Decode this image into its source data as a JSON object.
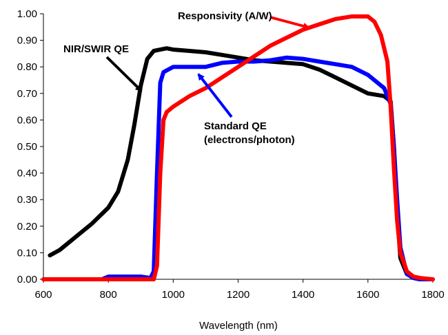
{
  "chart_data": {
    "type": "line",
    "xlabel": "Wavelength (nm)",
    "ylabel": "",
    "xlim": [
      600,
      1800
    ],
    "ylim": [
      0,
      1.0
    ],
    "x_ticks": [
      "600",
      "800",
      "1000",
      "1200",
      "1400",
      "1600",
      "1800"
    ],
    "y_ticks": [
      "0.00",
      "0.10",
      "0.20",
      "0.30",
      "0.40",
      "0.50",
      "0.60",
      "0.70",
      "0.80",
      "0.90",
      "1.00"
    ],
    "grid": false,
    "legend": "none",
    "series": [
      {
        "name": "NIR/SWIR QE",
        "color": "#000000",
        "x": [
          620,
          650,
          700,
          750,
          800,
          830,
          860,
          880,
          900,
          920,
          940,
          960,
          980,
          1000,
          1050,
          1100,
          1150,
          1200,
          1250,
          1300,
          1350,
          1400,
          1450,
          1500,
          1550,
          1600,
          1650,
          1670,
          1680,
          1690,
          1700,
          1720,
          1740,
          1760
        ],
        "y": [
          0.09,
          0.11,
          0.16,
          0.21,
          0.27,
          0.33,
          0.45,
          0.58,
          0.73,
          0.83,
          0.86,
          0.865,
          0.87,
          0.865,
          0.86,
          0.855,
          0.845,
          0.835,
          0.825,
          0.82,
          0.815,
          0.81,
          0.79,
          0.76,
          0.73,
          0.7,
          0.69,
          0.67,
          0.5,
          0.25,
          0.08,
          0.02,
          0.005,
          0.0
        ]
      },
      {
        "name": "Standard QE (electrons/photon)",
        "color": "#0000ff",
        "x": [
          600,
          780,
          800,
          850,
          900,
          930,
          940,
          950,
          960,
          970,
          1000,
          1050,
          1080,
          1100,
          1150,
          1200,
          1250,
          1300,
          1350,
          1400,
          1450,
          1500,
          1550,
          1600,
          1650,
          1670,
          1680,
          1690,
          1700,
          1720,
          1740,
          1760,
          1800
        ],
        "y": [
          0.0,
          0.0,
          0.01,
          0.01,
          0.01,
          0.005,
          0.03,
          0.4,
          0.74,
          0.78,
          0.8,
          0.8,
          0.8,
          0.8,
          0.815,
          0.82,
          0.82,
          0.825,
          0.835,
          0.83,
          0.82,
          0.81,
          0.8,
          0.77,
          0.72,
          0.66,
          0.5,
          0.3,
          0.12,
          0.02,
          0.005,
          0.0,
          0.0
        ]
      },
      {
        "name": "Responsivity (A/W)",
        "color": "#ff0000",
        "x": [
          600,
          900,
          940,
          950,
          960,
          970,
          980,
          1000,
          1050,
          1100,
          1150,
          1200,
          1250,
          1300,
          1350,
          1400,
          1450,
          1500,
          1550,
          1600,
          1620,
          1640,
          1660,
          1670,
          1680,
          1690,
          1700,
          1720,
          1740,
          1760,
          1800
        ],
        "y": [
          0.0,
          0.0,
          0.0,
          0.05,
          0.4,
          0.6,
          0.63,
          0.65,
          0.69,
          0.72,
          0.76,
          0.8,
          0.84,
          0.88,
          0.91,
          0.94,
          0.96,
          0.98,
          0.99,
          0.99,
          0.97,
          0.92,
          0.82,
          0.65,
          0.42,
          0.22,
          0.1,
          0.03,
          0.01,
          0.005,
          0.0
        ]
      }
    ],
    "annotations": [
      {
        "lines": [
          "Responsivity (A/W)"
        ],
        "series": "Responsivity (A/W)"
      },
      {
        "lines": [
          "NIR/SWIR QE"
        ],
        "series": "NIR/SWIR QE"
      },
      {
        "lines": [
          "Standard QE",
          "(electrons/photon)"
        ],
        "series": "Standard QE (electrons/photon)"
      }
    ]
  }
}
